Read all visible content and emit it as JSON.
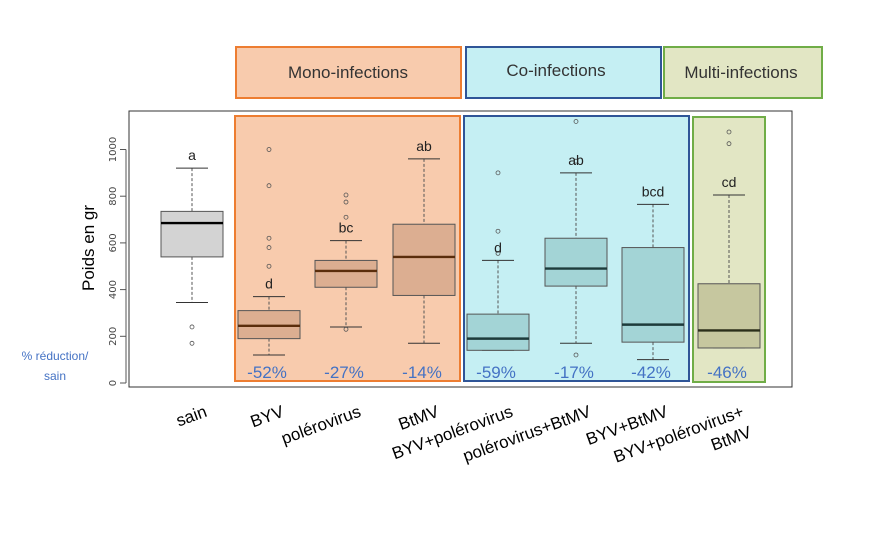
{
  "groups": [
    {
      "label": "Mono-infections",
      "color": "#ed7d31",
      "fill": "#f8cbad"
    },
    {
      "label": "Co-infections",
      "color": "#2f5597",
      "fill": "#c5eff3"
    },
    {
      "label": "Multi-infections",
      "color": "#70ad47",
      "fill": "#e2e6c4"
    }
  ],
  "reduction_label": {
    "line1": "% réduction/",
    "line2": "sain"
  },
  "chart_data": {
    "type": "box",
    "ylabel": "Poids en gr",
    "ylim": [
      0,
      1150
    ],
    "yticks": [
      0,
      200,
      400,
      600,
      800,
      1000
    ],
    "categories": [
      {
        "label": [
          "sain"
        ],
        "min": 345,
        "q1": 540,
        "median": 685,
        "q3": 735,
        "max": 920,
        "outliers": [
          240,
          170
        ],
        "letter": "a",
        "reduction": "",
        "group": "none",
        "box_color": "#d3d3d3",
        "line_color": "#000000"
      },
      {
        "label": [
          "BYV"
        ],
        "min": 120,
        "q1": 190,
        "median": 245,
        "q3": 310,
        "max": 370,
        "outliers": [
          1000,
          845,
          620,
          580,
          500
        ],
        "letter": "d",
        "reduction": "-52%",
        "group": "Mono-infections",
        "box_color": "#dcae91",
        "line_color": "#5a2d0c"
      },
      {
        "label": [
          "polérovirus"
        ],
        "min": 240,
        "q1": 410,
        "median": 480,
        "q3": 525,
        "max": 610,
        "outliers": [
          805,
          775,
          710,
          230
        ],
        "letter": "bc",
        "reduction": "-27%",
        "group": "Mono-infections",
        "box_color": "#dcae91",
        "line_color": "#5a2d0c"
      },
      {
        "label": [
          "BtMV"
        ],
        "min": 170,
        "q1": 375,
        "median": 540,
        "q3": 680,
        "max": 960,
        "outliers": [],
        "letter": "ab",
        "reduction": "-14%",
        "group": "Mono-infections",
        "box_color": "#dcae91",
        "line_color": "#5a2d0c"
      },
      {
        "label": [
          "BYV+polérovirus"
        ],
        "min": 140,
        "q1": 140,
        "median": 190,
        "q3": 295,
        "max": 525,
        "outliers": [
          900,
          650,
          555
        ],
        "letter": "d",
        "reduction": "-59%",
        "group": "Co-infections",
        "box_color": "#a3d4d6",
        "line_color": "#1d3b3b"
      },
      {
        "label": [
          "polérovirus+BtMV"
        ],
        "min": 170,
        "q1": 415,
        "median": 490,
        "q3": 620,
        "max": 900,
        "outliers": [
          1120,
          950,
          120
        ],
        "letter": "ab",
        "reduction": "-17%",
        "group": "Co-infections",
        "box_color": "#a3d4d6",
        "line_color": "#1d3b3b"
      },
      {
        "label": [
          "BYV+BtMV"
        ],
        "min": 100,
        "q1": 175,
        "median": 250,
        "q3": 580,
        "max": 765,
        "outliers": [],
        "letter": "bcd",
        "reduction": "-42%",
        "group": "Co-infections",
        "box_color": "#a3d4d6",
        "line_color": "#1d3b3b"
      },
      {
        "label": [
          "BYV+polérovirus+",
          "BtMV"
        ],
        "min": 150,
        "q1": 150,
        "median": 225,
        "q3": 425,
        "max": 805,
        "outliers": [
          1075,
          1025
        ],
        "letter": "cd",
        "reduction": "-46%",
        "group": "Multi-infections",
        "box_color": "#c6c79f",
        "line_color": "#2b2f1a"
      }
    ]
  }
}
